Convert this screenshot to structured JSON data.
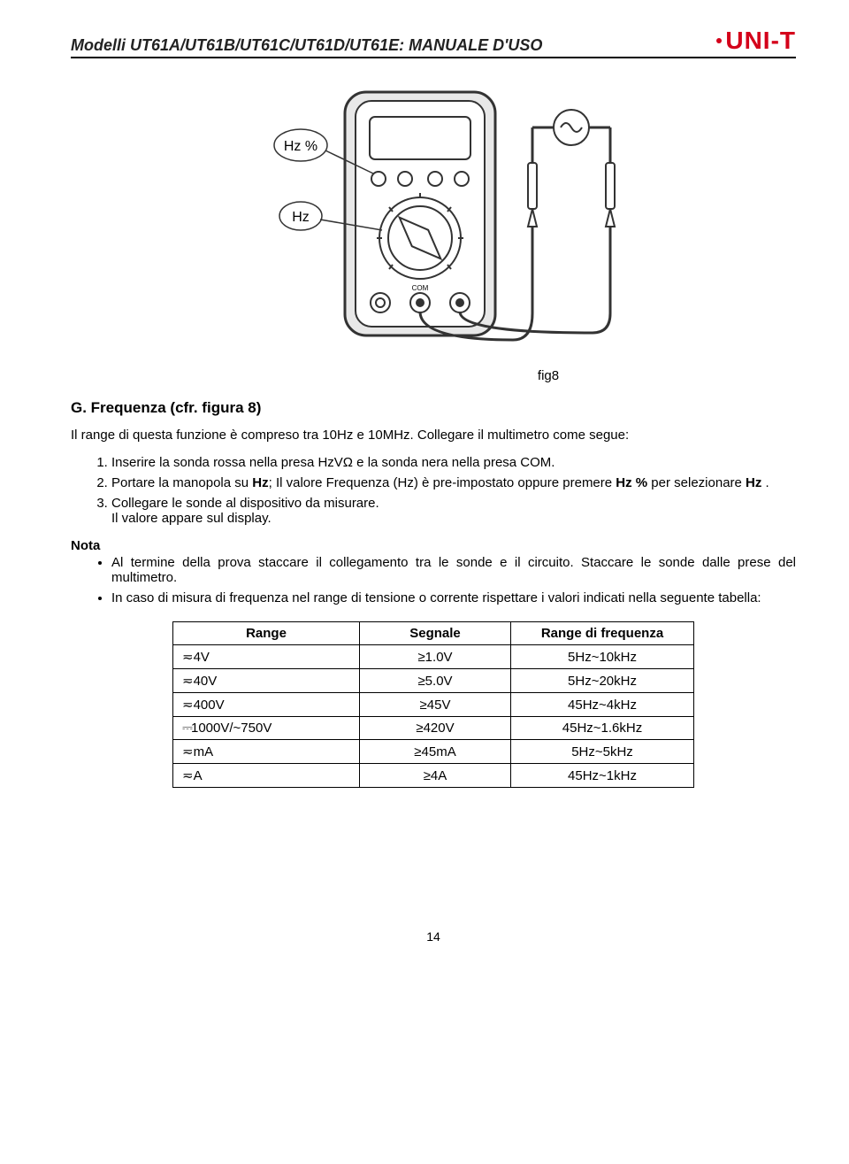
{
  "header": {
    "title": "Modelli UT61A/UT61B/UT61C/UT61D/UT61E: MANUALE D'USO",
    "brand": "UNI-T"
  },
  "diagram": {
    "callout_top": "Hz %",
    "callout_mid": "Hz",
    "com_label": "COM",
    "caption": "fig8"
  },
  "section": {
    "heading": "G.  Frequenza (cfr. figura 8)",
    "intro": "Il range di questa funzione è compreso tra 10Hz e 10MHz. Collegare il multimetro come segue:",
    "steps": [
      "Inserire la sonda rossa nella presa HzVΩ e la sonda nera nella presa COM.",
      "Portare la manopola su Hz; Il valore Frequenza (Hz) è pre-impostato oppure premere Hz % per selezionare Hz .",
      "Collegare le sonde al dispositivo da misurare.\nIl valore appare sul display."
    ]
  },
  "nota": {
    "heading": "Nota",
    "items": [
      "Al termine della prova staccare il collegamento tra le sonde e il circuito. Staccare le sonde dalle prese del multimetro.",
      "In caso di misura di frequenza nel range di tensione o corrente rispettare i valori indicati nella seguente tabella:"
    ]
  },
  "table": {
    "headers": [
      "Range",
      "Segnale",
      "Range di frequenza"
    ],
    "symbols": {
      "ac": "≂",
      "dcac": "⎓"
    },
    "rows": [
      {
        "sym": "ac",
        "range": "4V",
        "signal": "≥1.0V",
        "freq": "5Hz~10kHz"
      },
      {
        "sym": "ac",
        "range": "40V",
        "signal": "≥5.0V",
        "freq": "5Hz~20kHz"
      },
      {
        "sym": "ac",
        "range": "400V",
        "signal": "≥45V",
        "freq": "45Hz~4kHz"
      },
      {
        "sym": "dcac",
        "range": "1000V/~750V",
        "signal": "≥420V",
        "freq": "45Hz~1.6kHz"
      },
      {
        "sym": "ac",
        "range": "mA",
        "signal": "≥45mA",
        "freq": "5Hz~5kHz"
      },
      {
        "sym": "ac",
        "range": "A",
        "signal": "≥4A",
        "freq": "45Hz~1kHz"
      }
    ]
  },
  "page_number": "14"
}
